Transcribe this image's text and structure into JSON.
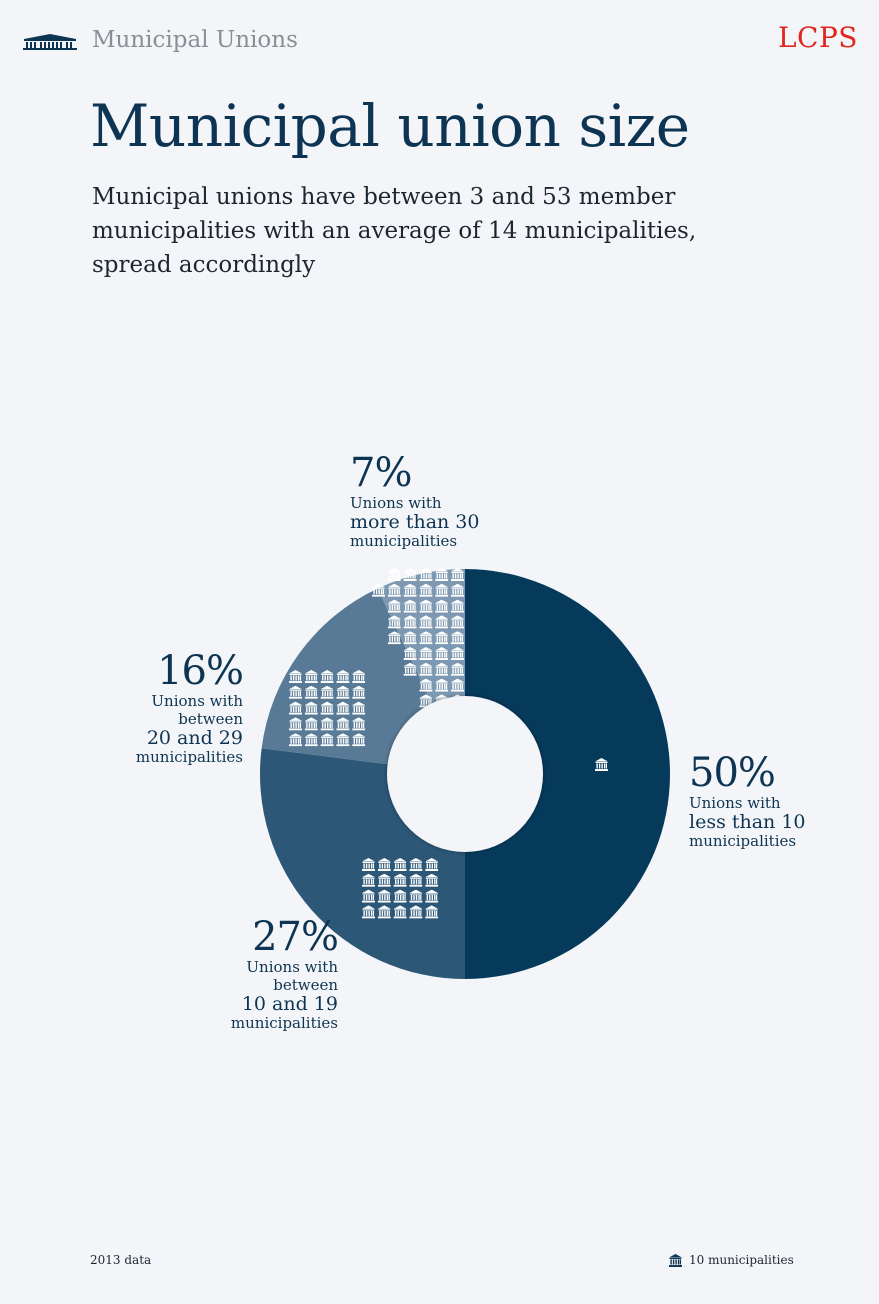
{
  "header": {
    "section_title": "Municipal Unions",
    "brand": "LCPS"
  },
  "title": "Municipal union size",
  "subtitle": "Municipal unions have between 3 and 53 member municipalities with an average of 14 municipalities, spread accordingly",
  "colors": {
    "s1": "#063a5b",
    "s2": "#2c5777",
    "s3": "#587a96",
    "s4": "#7c99b1",
    "icon": "#ffffff",
    "brand": "#e0261d"
  },
  "chart_data": {
    "type": "pie",
    "donut": true,
    "unit": "%",
    "icon_legend": "10 municipalities",
    "slices": [
      {
        "value": 50,
        "label": "50%",
        "lines": [
          "Unions with",
          "less than 10",
          "municipalities"
        ],
        "icons": 1
      },
      {
        "value": 27,
        "label": "27%",
        "lines": [
          "Unions with",
          "between",
          "10 and 19",
          "municipalities"
        ],
        "icons": 20
      },
      {
        "value": 16,
        "label": "16%",
        "lines": [
          "Unions with",
          "between",
          "20 and 29",
          "municipalities"
        ],
        "icons": 25
      },
      {
        "value": 7,
        "label": "7%",
        "lines": [
          "Unions with",
          "more than 30",
          "municipalities"
        ],
        "icons": 40
      }
    ]
  },
  "footer": {
    "year_note": "2013 data",
    "legend_text": "10 municipalities"
  }
}
